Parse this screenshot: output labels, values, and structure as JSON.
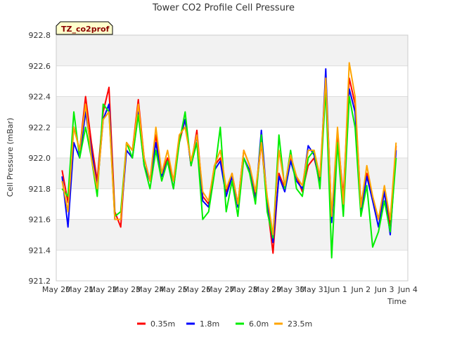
{
  "chart_data": {
    "type": "line",
    "title": "Tower CO2 Profile Cell Pressure",
    "xlabel": "Time",
    "ylabel": "Cell Pressure (mBar)",
    "badge": "TZ_co2prof",
    "xlim": [
      0,
      15
    ],
    "ylim": [
      921.2,
      922.8
    ],
    "x_ticks": [
      {
        "v": 0,
        "label": "May 20"
      },
      {
        "v": 1,
        "label": "May 21"
      },
      {
        "v": 2,
        "label": "May 22"
      },
      {
        "v": 3,
        "label": "May 23"
      },
      {
        "v": 4,
        "label": "May 24"
      },
      {
        "v": 5,
        "label": "May 25"
      },
      {
        "v": 6,
        "label": "May 26"
      },
      {
        "v": 7,
        "label": "May 27"
      },
      {
        "v": 8,
        "label": "May 28"
      },
      {
        "v": 9,
        "label": "May 29"
      },
      {
        "v": 10,
        "label": "May 30"
      },
      {
        "v": 11,
        "label": "May 31"
      },
      {
        "v": 12,
        "label": "Jun 1"
      },
      {
        "v": 13,
        "label": "Jun 2"
      },
      {
        "v": 14,
        "label": "Jun 3"
      },
      {
        "v": 15,
        "label": "Jun 4"
      }
    ],
    "y_ticks": [
      921.2,
      921.4,
      921.6,
      921.8,
      922.0,
      922.2,
      922.4,
      922.6,
      922.8
    ],
    "y_tick_labels": [
      "921.2",
      "921.4",
      "921.6",
      "921.8",
      "922.0",
      "922.2",
      "922.4",
      "922.6",
      "922.8"
    ],
    "grid": true,
    "legend_position": "bottom",
    "x_day_offsets": [
      0.25,
      0.5,
      0.75,
      1.0,
      1.25,
      1.5,
      1.75,
      2.0,
      2.25,
      2.5,
      2.75,
      3.0,
      3.25,
      3.5,
      3.75,
      4.0,
      4.25,
      4.5,
      4.75,
      5.0,
      5.25,
      5.5,
      5.75,
      6.0,
      6.25,
      6.5,
      6.75,
      7.0,
      7.25,
      7.5,
      7.75,
      8.0,
      8.25,
      8.5,
      8.75,
      9.0,
      9.25,
      9.5,
      9.75,
      10.0,
      10.25,
      10.5,
      10.75,
      11.0,
      11.25,
      11.5,
      11.75,
      12.0,
      12.25,
      12.5,
      12.75,
      13.0,
      13.25,
      13.5,
      13.75,
      14.0,
      14.25,
      14.5
    ],
    "series": [
      {
        "name": "0.35m",
        "color": "#ff0000",
        "values": [
          921.92,
          921.71,
          922.2,
          922.05,
          922.4,
          922.1,
          921.85,
          922.3,
          922.46,
          921.65,
          921.55,
          922.1,
          922.05,
          922.38,
          922.0,
          921.85,
          922.15,
          921.9,
          922.0,
          921.85,
          922.1,
          922.25,
          921.95,
          922.18,
          921.75,
          921.7,
          921.95,
          922.0,
          921.78,
          921.9,
          921.7,
          922.05,
          921.95,
          921.75,
          922.1,
          921.7,
          921.38,
          921.9,
          921.8,
          922.0,
          921.88,
          921.78,
          921.95,
          922.0,
          921.85,
          922.5,
          921.6,
          922.15,
          921.75,
          922.52,
          922.35,
          921.7,
          921.9,
          921.75,
          921.6,
          921.8,
          921.55,
          922.08
        ]
      },
      {
        "name": "1.8m",
        "color": "#0000ff",
        "values": [
          921.88,
          921.55,
          922.1,
          922.0,
          922.3,
          922.05,
          921.8,
          922.25,
          922.35,
          921.6,
          921.6,
          922.05,
          922.0,
          922.3,
          921.95,
          921.85,
          922.1,
          921.88,
          921.98,
          921.8,
          922.12,
          922.25,
          921.95,
          922.15,
          921.72,
          921.68,
          921.92,
          921.98,
          921.75,
          921.88,
          921.68,
          922.0,
          921.92,
          921.72,
          922.18,
          921.72,
          921.45,
          921.88,
          921.78,
          921.98,
          921.85,
          921.8,
          922.08,
          922.02,
          921.82,
          922.58,
          921.58,
          922.1,
          921.72,
          922.45,
          922.3,
          921.65,
          921.88,
          921.72,
          921.55,
          921.78,
          921.5,
          922.05
        ]
      },
      {
        "name": "6.0m",
        "color": "#00ee00",
        "values": [
          921.8,
          921.75,
          922.3,
          922.0,
          922.2,
          922.0,
          921.75,
          922.35,
          922.3,
          921.62,
          921.65,
          922.1,
          922.0,
          922.28,
          921.95,
          921.8,
          922.05,
          921.85,
          921.98,
          921.8,
          922.1,
          922.3,
          921.95,
          922.1,
          921.6,
          921.65,
          921.9,
          922.2,
          921.65,
          921.85,
          921.62,
          922.0,
          921.9,
          921.7,
          922.15,
          921.65,
          921.48,
          922.15,
          921.8,
          922.05,
          921.8,
          921.75,
          922.0,
          922.05,
          921.8,
          922.45,
          921.35,
          922.1,
          921.62,
          922.4,
          922.2,
          921.62,
          921.82,
          921.42,
          921.52,
          921.72,
          921.52,
          922.0
        ]
      },
      {
        "name": "23.5m",
        "color": "#ffa500",
        "values": [
          921.85,
          921.65,
          922.2,
          922.05,
          922.35,
          922.0,
          921.8,
          922.25,
          922.3,
          921.6,
          921.6,
          922.1,
          922.05,
          922.35,
          922.0,
          921.85,
          922.2,
          921.9,
          922.05,
          921.85,
          922.15,
          922.2,
          921.98,
          922.15,
          921.78,
          921.72,
          921.95,
          922.05,
          921.8,
          921.9,
          921.7,
          922.05,
          921.95,
          921.78,
          922.1,
          921.75,
          921.5,
          922.05,
          921.82,
          922.02,
          921.88,
          921.82,
          922.05,
          922.05,
          921.88,
          922.52,
          921.62,
          922.2,
          921.7,
          922.62,
          922.4,
          921.68,
          921.95,
          921.75,
          921.6,
          921.82,
          921.6,
          922.1
        ]
      }
    ]
  }
}
